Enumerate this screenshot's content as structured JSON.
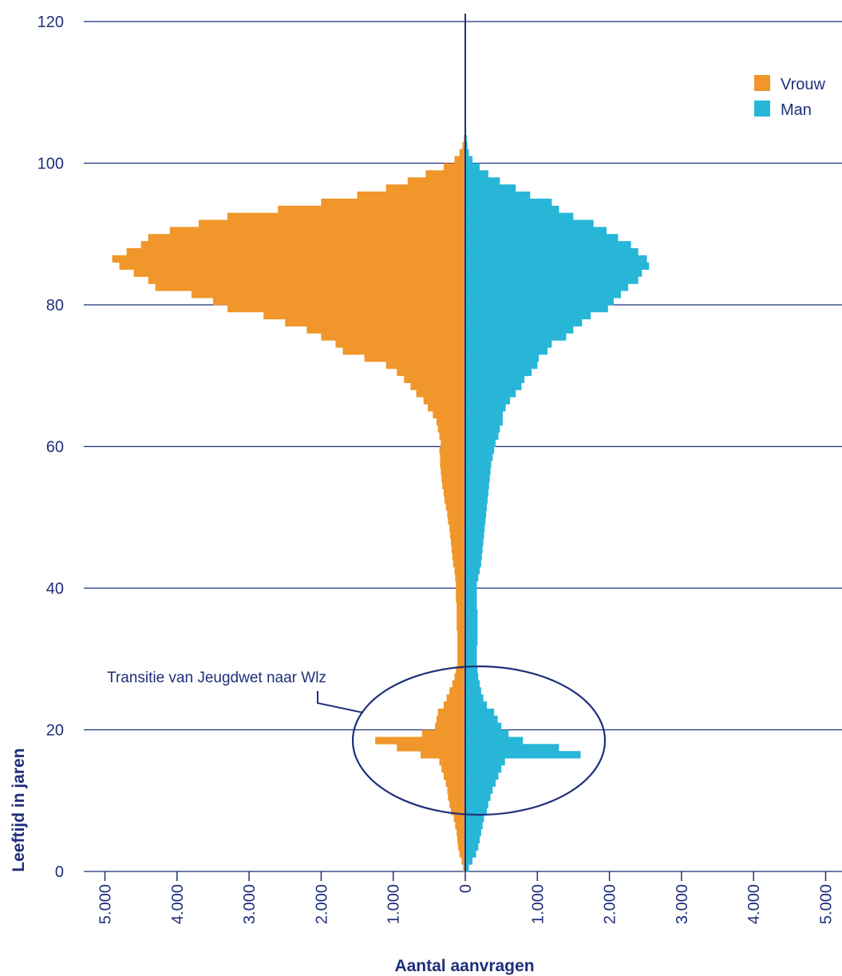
{
  "chart_data": {
    "type": "bar",
    "orientation": "horizontal-population-pyramid",
    "xlabel": "Aantal aanvragen",
    "ylabel": "Leeftijd in jaren",
    "xlim": [
      -5000,
      5000
    ],
    "ylim": [
      0,
      120
    ],
    "x_tick_labels": [
      "5.000",
      "4.000",
      "3.000",
      "2.000",
      "1.000",
      "0",
      "1.000",
      "2.000",
      "3.000",
      "4.000",
      "5.000"
    ],
    "x_tick_values": [
      -5000,
      -4000,
      -3000,
      -2000,
      -1000,
      0,
      1000,
      2000,
      3000,
      4000,
      5000
    ],
    "y_ticks": [
      0,
      20,
      40,
      60,
      80,
      100,
      120
    ],
    "grid": "horizontal",
    "legend_position": "top-right",
    "colors": {
      "axis": "#1f2f7a",
      "Vrouw": "#f0962a",
      "Man": "#27b6d8"
    },
    "ages": [
      0,
      1,
      2,
      3,
      4,
      5,
      6,
      7,
      8,
      9,
      10,
      11,
      12,
      13,
      14,
      15,
      16,
      17,
      18,
      19,
      20,
      21,
      22,
      23,
      24,
      25,
      26,
      27,
      28,
      29,
      30,
      31,
      32,
      33,
      34,
      35,
      36,
      37,
      38,
      39,
      40,
      41,
      42,
      43,
      44,
      45,
      46,
      47,
      48,
      49,
      50,
      51,
      52,
      53,
      54,
      55,
      56,
      57,
      58,
      59,
      60,
      61,
      62,
      63,
      64,
      65,
      66,
      67,
      68,
      69,
      70,
      71,
      72,
      73,
      74,
      75,
      76,
      77,
      78,
      79,
      80,
      81,
      82,
      83,
      84,
      85,
      86,
      87,
      88,
      89,
      90,
      91,
      92,
      93,
      94,
      95,
      96,
      97,
      98,
      99,
      100,
      101,
      102,
      103,
      104,
      105,
      106,
      107,
      108,
      109
    ],
    "series": [
      {
        "name": "Vrouw",
        "values": [
          30,
          50,
          80,
          100,
          110,
          120,
          140,
          160,
          200,
          220,
          240,
          250,
          270,
          300,
          330,
          360,
          620,
          950,
          1250,
          600,
          420,
          400,
          380,
          300,
          260,
          220,
          180,
          150,
          130,
          110,
          110,
          110,
          110,
          110,
          120,
          120,
          120,
          120,
          130,
          130,
          130,
          140,
          150,
          170,
          180,
          190,
          200,
          210,
          220,
          240,
          250,
          270,
          290,
          300,
          320,
          330,
          340,
          350,
          350,
          360,
          340,
          360,
          380,
          400,
          450,
          520,
          580,
          680,
          760,
          850,
          950,
          1100,
          1400,
          1700,
          1800,
          2000,
          2200,
          2500,
          2800,
          3300,
          3500,
          3800,
          4300,
          4400,
          4600,
          4800,
          4900,
          4700,
          4500,
          4400,
          4100,
          3700,
          3300,
          2600,
          2000,
          1500,
          1100,
          800,
          550,
          300,
          150,
          80,
          40,
          20,
          10,
          5,
          3,
          2,
          1,
          1
        ],
        "fill": "#f0962a"
      },
      {
        "name": "Man",
        "values": [
          50,
          100,
          150,
          180,
          200,
          220,
          240,
          260,
          300,
          320,
          350,
          380,
          420,
          460,
          500,
          550,
          1600,
          1300,
          800,
          600,
          500,
          450,
          400,
          300,
          250,
          220,
          200,
          180,
          170,
          160,
          160,
          160,
          170,
          170,
          170,
          170,
          170,
          160,
          160,
          160,
          160,
          180,
          200,
          220,
          230,
          240,
          250,
          260,
          270,
          280,
          290,
          300,
          310,
          320,
          330,
          340,
          350,
          360,
          380,
          400,
          420,
          460,
          480,
          520,
          520,
          560,
          620,
          700,
          780,
          820,
          920,
          1000,
          1020,
          1140,
          1200,
          1400,
          1500,
          1620,
          1740,
          1980,
          2060,
          2160,
          2260,
          2400,
          2450,
          2550,
          2520,
          2400,
          2300,
          2120,
          1960,
          1780,
          1500,
          1300,
          1200,
          900,
          700,
          480,
          320,
          200,
          100,
          50,
          30,
          20,
          10,
          5,
          3,
          2,
          1,
          1
        ],
        "fill": "#27b6d8"
      }
    ],
    "annotations": [
      "Transitie van Jeugdwet naar Wlz"
    ]
  },
  "legend": [
    {
      "label": "Vrouw",
      "color": "#f0962a"
    },
    {
      "label": "Man",
      "color": "#27b6d8"
    }
  ]
}
